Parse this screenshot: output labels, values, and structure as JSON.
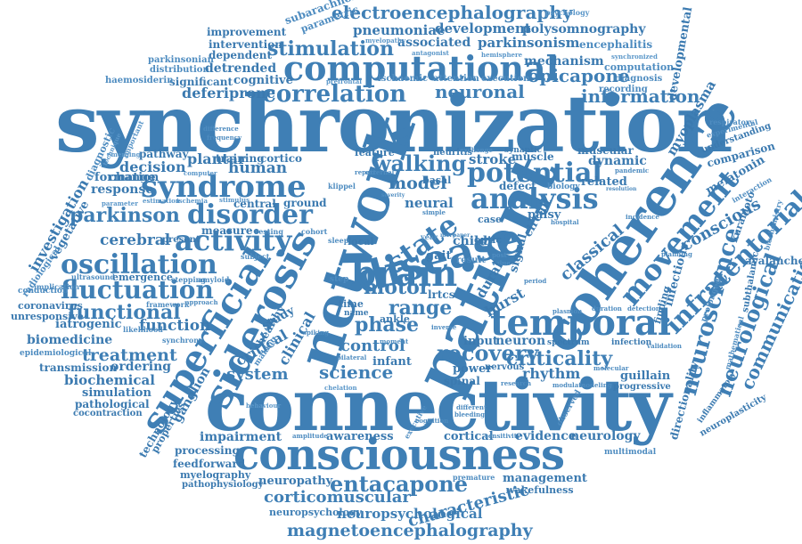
{
  "colors": {
    "primary": "#3f7fb5",
    "background": "#ffffff"
  },
  "words": {
    "synchronization": "synchronization",
    "connectivity": "connectivity",
    "consciousness": "consciousness",
    "network": "network",
    "patient": "patient",
    "coherence": "coherence",
    "computational": "computational",
    "disease": "disease",
    "temporal": "temporal",
    "syndrome": "syndrome",
    "siderosis": "siderosis",
    "superficial": "superficial",
    "activity": "activity",
    "oscillation": "oscillation",
    "fluctuation": "fluctuation",
    "disorder": "disorder",
    "brain": "brain",
    "state": "state",
    "analysis": "analysis",
    "potential": "potential",
    "movement": "movement",
    "infratentorial": "infratentorial",
    "neuroscience": "neuroscience",
    "neurological": "neurological",
    "correlation": "correlation",
    "electroencephalography": "electroencephalography",
    "magnetoencephalography": "magnetoencephalography",
    "entacapone": "entacapone",
    "criticality": "criticality",
    "recovery": "recovery",
    "functional": "functional",
    "stimulation": "stimulation",
    "walking": "walking",
    "motor": "motor",
    "phase": "phase",
    "range": "range",
    "neuronal": "neuronal",
    "information": "information",
    "opicapone": "opicapone",
    "parkinson": "parkinson",
    "science": "science",
    "system": "system",
    "treatment": "treatment",
    "control": "control",
    "characteristic": "characteristic",
    "corticomuscular": "corticomuscular",
    "neuropsychological": "neuropsychological",
    "pneumoniae": "pneumoniae",
    "development": "development",
    "polysomnography": "polysomnography",
    "parkinsonism": "parkinsonism",
    "associated": "associated",
    "deferiprone": "deferiprone",
    "human": "human",
    "model": "model",
    "neural": "neural",
    "cerebral": "cerebral",
    "response": "response",
    "decision": "decision",
    "function": "function",
    "rhythm": "rhythm",
    "communication": "communication",
    "conscious": "conscious",
    "classical": "classical",
    "impairment": "impairment",
    "awareness": "awareness",
    "evidence": "evidence",
    "neurology": "neurology",
    "management": "management",
    "neuropathy": "neuropathy",
    "feedforward": "feedforward",
    "processing": "processing",
    "myelography": "myelography",
    "pathophysiology": "pathophysiology",
    "neuropsychology": "neuropsychology",
    "investigation": "investigation",
    "vegetative": "vegetative",
    "iatrogenic": "iatrogenic",
    "biomedicine": "biomedicine",
    "biochemical": "biochemical",
    "simulation": "simulation",
    "pathological": "pathological",
    "cocontraction": "cocontraction",
    "transmission": "transmission",
    "ordering": "ordering",
    "epidemiological": "epidemiological",
    "unresponsive": "unresponsive",
    "coronavirus": "coronavirus",
    "conduction": "conduction",
    "radiological": "radiological",
    "formation": "formation",
    "change": "change",
    "pathway": "pathway",
    "plantar": "plantar",
    "cortico": "cortico",
    "training": "training",
    "feature": "feature",
    "stroke": "stroke",
    "defect": "defect",
    "biology": "biology",
    "related": "related",
    "dynamic": "dynamic",
    "muscular": "muscular",
    "circuit": "circuit",
    "palsy": "palsy",
    "burst": "burst",
    "signal": "signal",
    "dural": "dural",
    "neuron": "neuron",
    "input": "input",
    "infant": "infant",
    "spinal": "spinal",
    "power": "power",
    "guillain": "guillain",
    "infectious": "infectious",
    "melatonin": "melatonin",
    "avalanche": "avalanche",
    "comparison": "comparison",
    "developmental": "developmental",
    "myoplasma": "myoplasma",
    "mechanism": "mechanism",
    "computation": "computation",
    "encephalitis": "encephalitis",
    "diagnosis": "diagnosis",
    "recording": "recording",
    "attention": "attention",
    "execution": "execution",
    "ischaemic": "ischaemic",
    "significant": "significant",
    "cognitive": "cognitive",
    "detrended": "detrended",
    "haemosiderin": "haemosiderin",
    "dependent": "dependent",
    "intervention": "intervention",
    "improvement": "improvement",
    "parkinsonian": "parkinsonian",
    "distribution": "distribution",
    "subarachnoid": "subarachnoid",
    "parametric": "parametric",
    "directionality": "directionality",
    "neuroplasticity": "neuroplasticity",
    "technology": "technology",
    "properties": "properties",
    "ganglion": "ganglion",
    "critical": "critical",
    "clinical": "clinical",
    "healthy": "healthy",
    "study": "study",
    "measure": "measure",
    "central": "central",
    "ground": "ground",
    "present": "present",
    "emergence": "emergence",
    "ultrasound": "ultrasound",
    "framework": "framework",
    "synchrony": "synchrony",
    "likelihood": "likelihood",
    "finding": "finding",
    "result": "result",
    "multimodal": "multimodal",
    "progressive": "progressive",
    "wakefulness": "wakefulness",
    "premature": "premature",
    "cortical": "cortical",
    "executive": "executive",
    "amplitude": "amplitude",
    "bleeding": "bleeding",
    "different": "different",
    "cognition": "cognition",
    "research": "research",
    "modulate": "modulate",
    "modeling": "modeling",
    "spectrum": "spectrum",
    "infection": "infection",
    "validation": "validation",
    "duration": "duration",
    "detection": "detection",
    "plasmon": "plasmon",
    "nervous": "nervous",
    "molecular": "molecular",
    "kuramoto": "kuramoto",
    "interaction": "interaction",
    "subthalamic": "subthalamic",
    "prolonged": "prolonged",
    "mathematical": "mathematical",
    "inflammatory": "inflammatory",
    "respiratory": "respiratory",
    "experimental": "experimental",
    "understanding": "understanding",
    "pandemic": "pandemic",
    "resolution": "resolution",
    "biochemistry": "biochemistry",
    "incidence": "incidence",
    "hospital": "hospital",
    "cohort": "cohort",
    "resting": "resting",
    "subject": "subject",
    "linear": "linear",
    "spiking": "spiking",
    "behaviour": "behaviour",
    "chelation": "chelation",
    "moment": "moment",
    "bilateral": "bilateral",
    "sleep": "sleep",
    "local": "local",
    "ankle": "ankle",
    "name": "name",
    "time": "time",
    "series": "series",
    "step": "step",
    "year": "year",
    "child": "child",
    "optic": "optic",
    "basal": "basal",
    "case": "case",
    "gait": "gait",
    "muscle": "muscle",
    "neuritis": "neuritis",
    "exchange": "exchange",
    "structure": "structure",
    "synaptic": "synaptic",
    "severe": "severe",
    "external": "external",
    "repair": "repair",
    "simple": "simple",
    "lrtcs": "lrtcs",
    "inverse": "inverse",
    "post": "post",
    "value": "value",
    "period": "period",
    "observed": "observed",
    "effect": "effect",
    "myelopathy": "myelopathy",
    "psychology": "psychology",
    "antagonist": "antagonist",
    "hemisphere": "hemisphere",
    "synchronized": "synchronized",
    "prefrontal": "prefrontal",
    "important": "important",
    "diagnostic": "diagnostic",
    "technique": "technique",
    "emerging": "emerging",
    "parameter": "parameter",
    "estimation": "estimation",
    "ischemia": "ischemia",
    "stimulus": "stimulus",
    "computer": "computer",
    "implication": "implication",
    "stepping": "stepping",
    "amyloid": "amyloid",
    "approach": "approach",
    "making": "making",
    "frequency": "frequency",
    "existence": "existence",
    "difference": "difference",
    "pressure": "pressure",
    "specificity": "specificity",
    "klippel": "klippel",
    "severity": "severity",
    "region": "region",
    "making2": "making",
    "paper": "paper",
    "source": "source",
    "more": "more",
    "scale": "scale",
    "field": "field",
    "iron": "iron",
    "index": "index",
    "data": "data",
    "planning": "planning",
    "primary": "primary",
    "interferon": "interferon",
    "accessory": "accessory",
    "cerebellar": "cerebellar",
    "depth": "depth",
    "order": "order",
    "sensitivity": "sensitivity",
    "learning": "learning",
    "regulation": "regulation"
  }
}
